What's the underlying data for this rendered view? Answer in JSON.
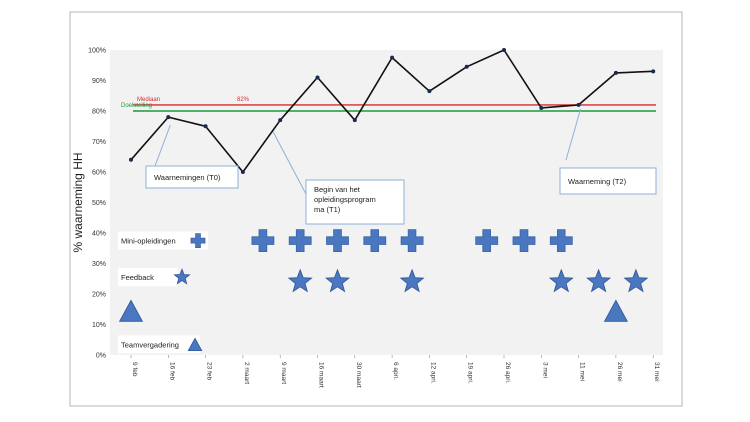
{
  "chart_data": {
    "type": "line",
    "ylabel": "% waarneming HH",
    "xlabel": "",
    "title": "",
    "ylim": [
      0,
      100
    ],
    "y_ticks": [
      "0%",
      "10%",
      "20%",
      "30%",
      "40%",
      "50%",
      "60%",
      "70%",
      "80%",
      "90%",
      "100%"
    ],
    "x_ticks": [
      "9 feb",
      "16 feb",
      "23 feb",
      "2 maart",
      "9 maart",
      "16 maart",
      "30 maart",
      "6 apri.",
      "12 apri.",
      "19 apri.",
      "26 apri.",
      "3 mei",
      "11 mei",
      "26 mei",
      "31 mei"
    ],
    "series": [
      {
        "name": "",
        "values": [
          64,
          78,
          75,
          60,
          77,
          91,
          77,
          97.5,
          86.5,
          94.5,
          100,
          81,
          82,
          92.5,
          93
        ],
        "color": "#111111"
      }
    ],
    "reference_lines": [
      {
        "name": "Mediaan",
        "value": 82,
        "color": "#d62c2c",
        "value_label": "82%"
      },
      {
        "name": "Doelstelling",
        "value": 80,
        "color": "#1a9a3a"
      }
    ],
    "grid": false,
    "background": "#f2f2f2",
    "annotations": [
      {
        "text": "Waarnemingen (T0)",
        "points_to": "16 feb"
      },
      {
        "text": "Begin van het opleidingsprogram ma (T1)",
        "points_to": "9 maart"
      },
      {
        "text": "Waarneming (T2)",
        "points_to": "11 mei"
      }
    ],
    "event_rows": [
      {
        "label": "Mini-opleidingen",
        "symbol": "cross",
        "color": "#4a78c0",
        "level": 37.5,
        "markers": [
          "23 feb",
          "2 maart",
          "9 maart",
          "16 maart",
          "30 maart",
          "6 apri.",
          "19 apri.",
          "26 apri.",
          "3 mei"
        ]
      },
      {
        "label": "Feedback",
        "symbol": "star",
        "color": "#4a78c0",
        "level": 24,
        "markers": [
          "23 feb",
          "9 maart",
          "16 maart",
          "6 apri.",
          "3 mei",
          "11 mei",
          "26 mei"
        ]
      },
      {
        "label": "Teamvergadering",
        "symbol": "triangle",
        "color": "#4a78c0",
        "level": 14,
        "markers": [
          "9 feb",
          "26 mei"
        ]
      }
    ]
  }
}
